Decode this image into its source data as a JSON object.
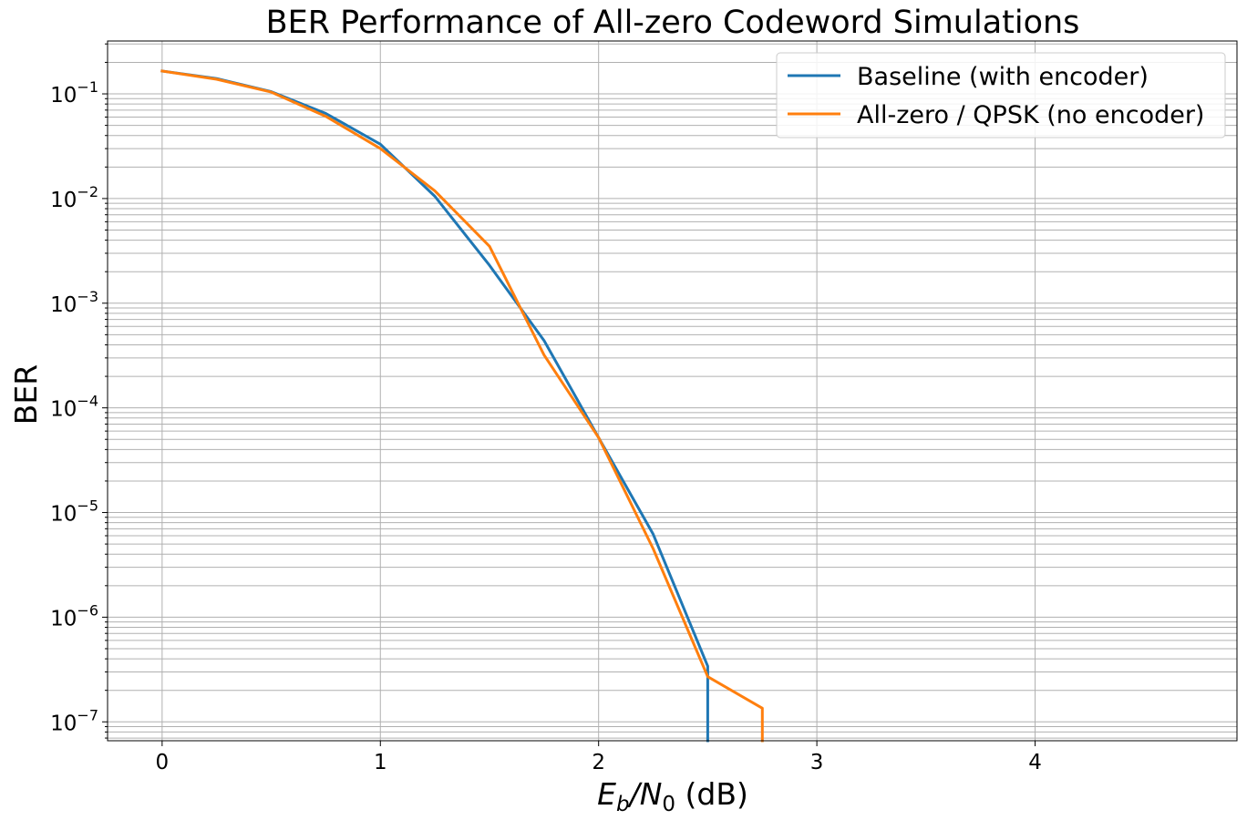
{
  "chart_data": {
    "type": "line",
    "title": "BER Performance of All-zero Codeword Simulations",
    "xlabel": {
      "base": "E",
      "sub1": "b",
      "mid": "/N",
      "sub2": "0",
      "tail": " (dB)"
    },
    "ylabel": "BER",
    "xlim": [
      -0.25,
      4.925
    ],
    "ylim": [
      6.6e-08,
      0.32
    ],
    "yscale": "log",
    "grid": true,
    "legend_position": "top-right",
    "x_ticks": [
      0,
      1,
      2,
      3,
      4
    ],
    "x_tick_labels": [
      "0",
      "1",
      "2",
      "3",
      "4"
    ],
    "y_ticks": [
      1e-07,
      1e-06,
      1e-05,
      0.0001,
      0.001,
      0.01,
      0.1
    ],
    "y_tick_labels": [
      {
        "base": "10",
        "exp": "−7"
      },
      {
        "base": "10",
        "exp": "−6"
      },
      {
        "base": "10",
        "exp": "−5"
      },
      {
        "base": "10",
        "exp": "−4"
      },
      {
        "base": "10",
        "exp": "−3"
      },
      {
        "base": "10",
        "exp": "−2"
      },
      {
        "base": "10",
        "exp": "−1"
      }
    ],
    "series": [
      {
        "name": "Baseline (with encoder)",
        "color": "#1f77b4",
        "x": [
          0,
          0.25,
          0.5,
          0.75,
          1.0,
          1.25,
          1.5,
          1.75,
          2.0,
          2.25,
          2.5
        ],
        "y": [
          0.165,
          0.14,
          0.105,
          0.065,
          0.033,
          0.0105,
          0.0023,
          0.00044,
          5.2e-05,
          6.2e-06,
          3.4e-07
        ],
        "drop_to_axis": true
      },
      {
        "name": "All-zero / QPSK (no encoder)",
        "color": "#ff7f0e",
        "x": [
          0,
          0.25,
          0.5,
          0.75,
          1.0,
          1.25,
          1.5,
          1.75,
          2.0,
          2.25,
          2.5,
          2.75
        ],
        "y": [
          0.165,
          0.138,
          0.104,
          0.061,
          0.03,
          0.0118,
          0.0035,
          0.00032,
          5.2e-05,
          4.5e-06,
          2.7e-07,
          1.35e-07
        ],
        "drop_to_axis": true
      }
    ]
  }
}
